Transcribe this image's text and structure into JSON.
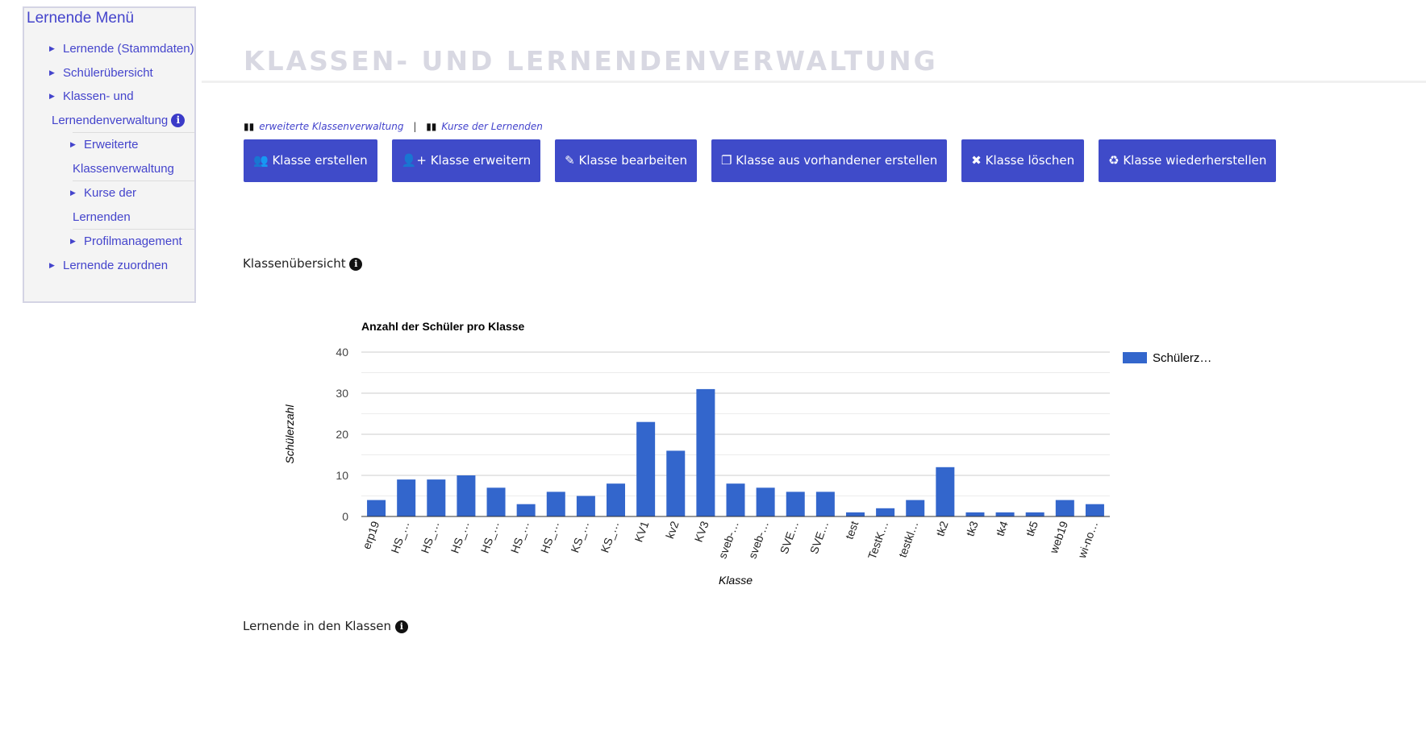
{
  "sidebar": {
    "title": "Lernende Menü",
    "items": [
      {
        "label": "Lernende (Stammdaten)"
      },
      {
        "label": "Schülerübersicht"
      },
      {
        "label": "Klassen- und Lernendenverwaltung"
      },
      {
        "label": "Erweiterte Klassenverwaltung"
      },
      {
        "label": "Kurse der Lernenden"
      },
      {
        "label": "Profilmanagement"
      },
      {
        "label": "Lernende zuordnen"
      }
    ]
  },
  "page": {
    "title": "KLASSEN- UND LERNENDENVERWALTUNG"
  },
  "links": {
    "extended": "erweiterte Klassenverwaltung",
    "separator": "|",
    "courses": "Kurse der Lernenden"
  },
  "buttons": [
    {
      "icon": "👥",
      "label": "Klasse erstellen"
    },
    {
      "icon": "👤+",
      "label": "Klasse erweitern"
    },
    {
      "icon": "✎",
      "label": "Klasse bearbeiten"
    },
    {
      "icon": "❐",
      "label": "Klasse aus vorhandener erstellen"
    },
    {
      "icon": "✖",
      "label": "Klasse löschen"
    },
    {
      "icon": "♻",
      "label": "Klasse wiederherstellen"
    }
  ],
  "sections": {
    "overview": "Klassenübersicht",
    "students": "Lernende in den Klassen"
  },
  "chart_data": {
    "type": "bar",
    "title": "Anzahl der Schüler pro Klasse",
    "xlabel": "Klasse",
    "ylabel": "Schülerzahl",
    "ylim": [
      0,
      40
    ],
    "yticks": [
      "0",
      "10",
      "20",
      "30",
      "40"
    ],
    "legend": "Schülerz…",
    "legend_position": "right",
    "color": "#3366cc",
    "categories": [
      "erp19",
      "HS_…",
      "HS_…",
      "HS_…",
      "HS_…",
      "HS_…",
      "HS_…",
      "KS_…",
      "KS_…",
      "KV1",
      "kv2",
      "KV3",
      "sveb-…",
      "sveb-…",
      "SVE…",
      "SVE…",
      "test",
      "TestK…",
      "testkl…",
      "tk2",
      "tk3",
      "tk4",
      "tk5",
      "web19",
      "wi-no…"
    ],
    "values": [
      4,
      9,
      9,
      10,
      7,
      3,
      6,
      5,
      8,
      23,
      16,
      31,
      8,
      7,
      6,
      6,
      1,
      2,
      4,
      12,
      1,
      1,
      1,
      4,
      3
    ]
  }
}
